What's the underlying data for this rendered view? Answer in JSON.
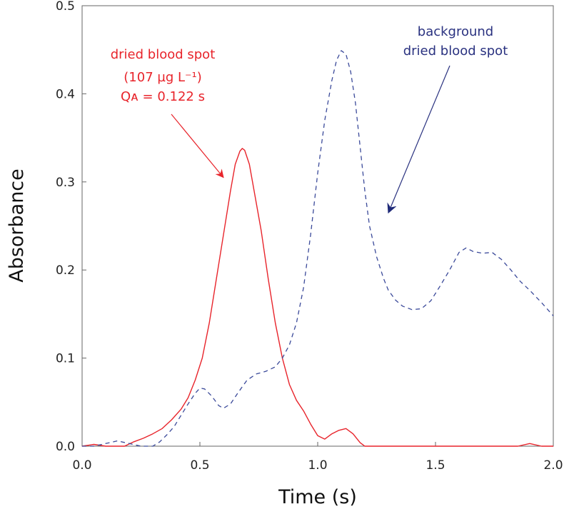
{
  "chart_data": {
    "type": "line",
    "xlabel": "Time (s)",
    "ylabel": "Absorbance",
    "xlim": [
      0.0,
      2.0
    ],
    "ylim": [
      0.0,
      0.5
    ],
    "xticks": [
      "0.0",
      "0.5",
      "1.0",
      "1.5",
      "2.0"
    ],
    "yticks": [
      "0.0",
      "0.1",
      "0.2",
      "0.3",
      "0.4",
      "0.5"
    ],
    "grid": false,
    "series": [
      {
        "key": "sample",
        "style": "solid",
        "color": "#e8242b",
        "x": [
          0.0,
          0.05,
          0.1,
          0.15,
          0.18,
          0.22,
          0.26,
          0.3,
          0.34,
          0.38,
          0.42,
          0.45,
          0.48,
          0.51,
          0.54,
          0.57,
          0.6,
          0.63,
          0.65,
          0.67,
          0.68,
          0.69,
          0.71,
          0.73,
          0.76,
          0.79,
          0.82,
          0.85,
          0.88,
          0.91,
          0.94,
          0.97,
          1.0,
          1.03,
          1.06,
          1.09,
          1.12,
          1.15,
          1.18,
          1.2,
          1.25,
          1.3,
          1.4,
          1.5,
          1.6,
          1.7,
          1.8,
          1.85,
          1.9,
          1.95,
          2.0
        ],
        "y": [
          0.0,
          0.002,
          0.0,
          0.0,
          0.0,
          0.005,
          0.009,
          0.014,
          0.02,
          0.03,
          0.042,
          0.055,
          0.075,
          0.1,
          0.14,
          0.19,
          0.24,
          0.29,
          0.32,
          0.335,
          0.338,
          0.336,
          0.32,
          0.29,
          0.245,
          0.19,
          0.14,
          0.1,
          0.07,
          0.052,
          0.04,
          0.025,
          0.012,
          0.008,
          0.014,
          0.018,
          0.02,
          0.014,
          0.004,
          0.0,
          0.0,
          0.0,
          0.0,
          0.0,
          0.0,
          0.0,
          0.0,
          0.0,
          0.003,
          0.0,
          0.0
        ]
      },
      {
        "key": "background",
        "style": "dashed",
        "color": "#3b4a9a",
        "x": [
          0.0,
          0.05,
          0.1,
          0.15,
          0.2,
          0.25,
          0.3,
          0.33,
          0.36,
          0.39,
          0.42,
          0.45,
          0.48,
          0.5,
          0.52,
          0.55,
          0.58,
          0.6,
          0.63,
          0.66,
          0.7,
          0.74,
          0.78,
          0.82,
          0.85,
          0.88,
          0.91,
          0.94,
          0.97,
          1.0,
          1.03,
          1.06,
          1.08,
          1.1,
          1.12,
          1.14,
          1.16,
          1.18,
          1.2,
          1.22,
          1.25,
          1.28,
          1.3,
          1.33,
          1.36,
          1.4,
          1.44,
          1.48,
          1.52,
          1.56,
          1.6,
          1.63,
          1.66,
          1.7,
          1.74,
          1.78,
          1.82,
          1.86,
          1.9,
          1.95,
          2.0
        ],
        "y": [
          0.0,
          0.0,
          0.003,
          0.006,
          0.003,
          0.0,
          0.0,
          0.005,
          0.013,
          0.022,
          0.035,
          0.048,
          0.06,
          0.066,
          0.065,
          0.057,
          0.046,
          0.043,
          0.048,
          0.06,
          0.075,
          0.082,
          0.085,
          0.09,
          0.1,
          0.115,
          0.14,
          0.18,
          0.24,
          0.31,
          0.37,
          0.415,
          0.438,
          0.449,
          0.445,
          0.425,
          0.39,
          0.34,
          0.29,
          0.25,
          0.215,
          0.19,
          0.177,
          0.166,
          0.159,
          0.155,
          0.156,
          0.165,
          0.182,
          0.2,
          0.22,
          0.225,
          0.221,
          0.219,
          0.22,
          0.212,
          0.2,
          0.187,
          0.177,
          0.163,
          0.148
        ]
      }
    ],
    "annotations": [
      {
        "key": "sample",
        "color": "#e8242b",
        "lines": [
          "dried blood spot",
          "(107 µg L⁻¹)",
          "Qᴀ = 0.122 s"
        ],
        "arrow_to": [
          0.6,
          0.305
        ]
      },
      {
        "key": "background",
        "color": "#2a3280",
        "lines": [
          "background",
          "dried blood spot"
        ],
        "arrow_to": [
          1.3,
          0.265
        ]
      }
    ]
  }
}
